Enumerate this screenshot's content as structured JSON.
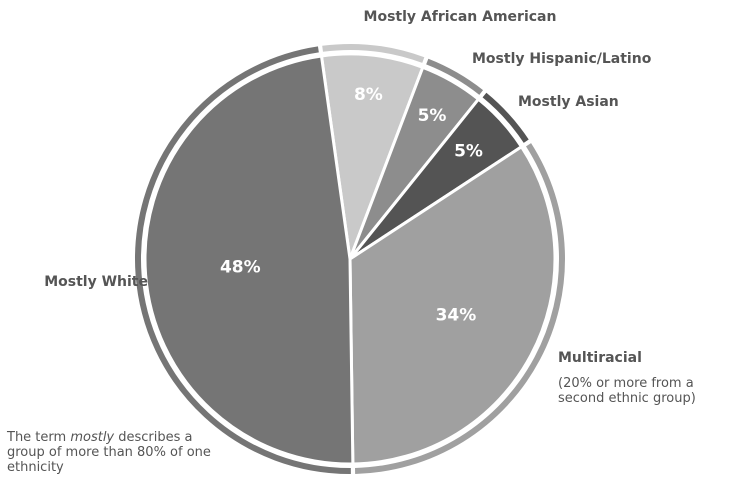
{
  "chart_data": {
    "type": "pie",
    "categories": [
      "Mostly African American",
      "Mostly Hispanic/Latino",
      "Mostly Asian",
      "Multiracial",
      "Mostly White"
    ],
    "values": [
      8,
      5,
      5,
      34,
      48
    ],
    "value_labels": [
      "8%",
      "5%",
      "5%",
      "34%",
      "48%"
    ],
    "colors": [
      "#c9c9c9",
      "#8d8d8d",
      "#545454",
      "#a0a0a0",
      "#757575"
    ],
    "category_notes": {
      "3": "(20% or more from a second ethnic group)"
    },
    "footnote": [
      "The term ",
      "mostly",
      " describes a group of more than 80% of one ethnicity"
    ]
  }
}
